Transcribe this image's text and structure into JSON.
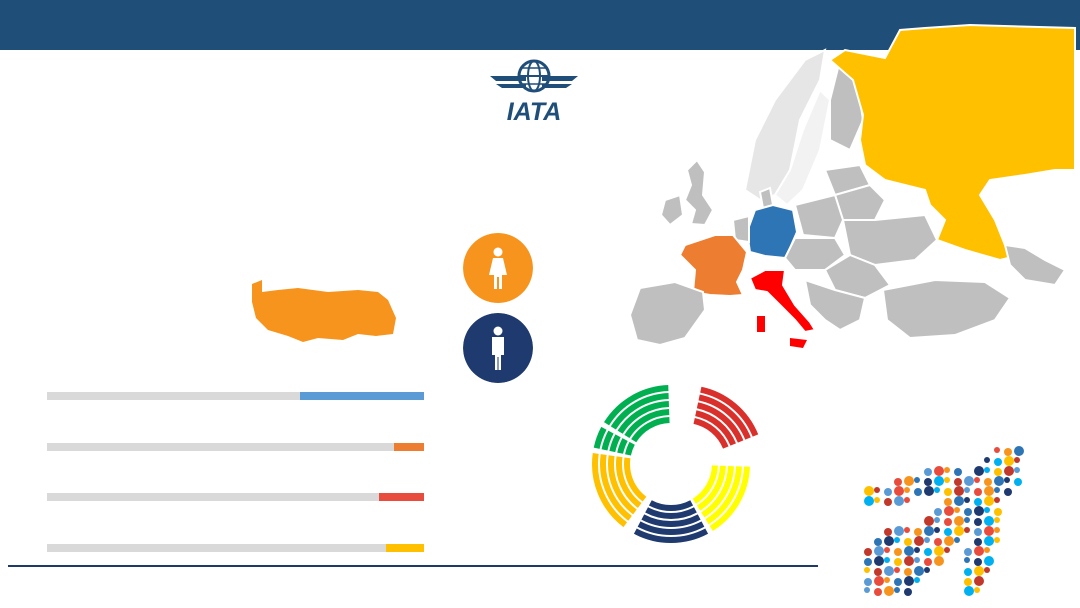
{
  "logo": {
    "wordmark": "IATA"
  },
  "colors": {
    "header": "#1f4e79",
    "russia": "#ffc000",
    "germany": "#2e75b6",
    "france": "#ed7d31",
    "italy": "#ff0000",
    "turkey": "#f7941d",
    "female": "#f7941d",
    "male": "#1f3a6e"
  },
  "icons": {
    "female": "female-person-icon",
    "male": "male-person-icon"
  },
  "bars": [
    {
      "accent": "#5b9bd5",
      "fraction": 0.33
    },
    {
      "accent": "#ed7d31",
      "fraction": 0.08
    },
    {
      "accent": "#e84c3d",
      "fraction": 0.12
    },
    {
      "accent": "#ffc000",
      "fraction": 0.1
    }
  ],
  "donut_segments": [
    {
      "color": "#00b050",
      "start": -60,
      "end": 0
    },
    {
      "color": "#d9302c",
      "start": 10,
      "end": 70
    },
    {
      "color": "#ffff00",
      "start": 90,
      "end": 150
    },
    {
      "color": "#1f3a6e",
      "start": 150,
      "end": 210
    },
    {
      "color": "#ffc000",
      "start": 215,
      "end": 280
    },
    {
      "color": "#00b050",
      "start": 280,
      "end": 300
    }
  ]
}
